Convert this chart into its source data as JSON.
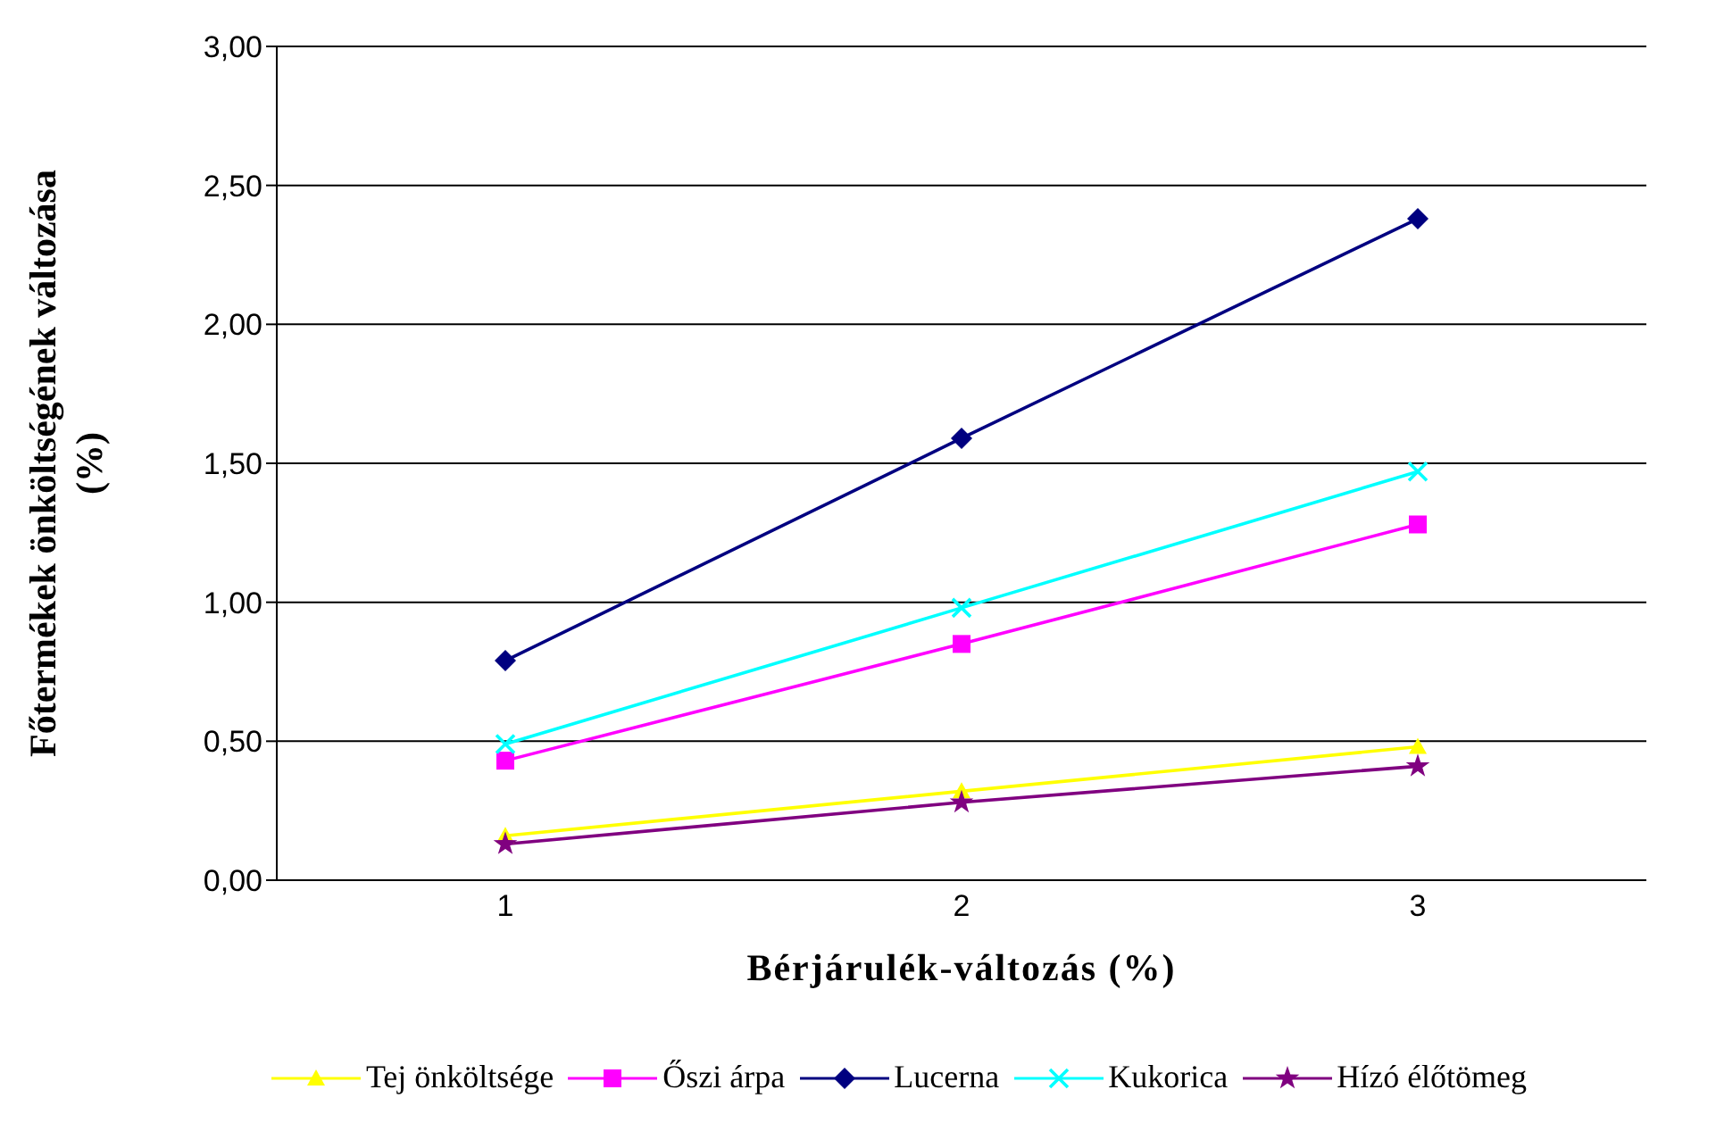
{
  "chart_data": {
    "type": "line",
    "xlabel": "Bérjárulék-változás (%)",
    "ylabel": "Főtermékek önköltségének változása (%)",
    "categories": [
      "1",
      "2",
      "3"
    ],
    "ylim": [
      0,
      3
    ],
    "yticks": [
      {
        "value": 0,
        "label": "0,00"
      },
      {
        "value": 0.5,
        "label": "0,50"
      },
      {
        "value": 1,
        "label": "1,00"
      },
      {
        "value": 1.5,
        "label": "1,50"
      },
      {
        "value": 2,
        "label": "2,00"
      },
      {
        "value": 2.5,
        "label": "2,50"
      },
      {
        "value": 3,
        "label": "3,00"
      }
    ],
    "grid": "y",
    "legend": "bottom",
    "line_style": "solid",
    "series": [
      {
        "name": "Tej önköltsége",
        "color": "#ffff00",
        "marker": "triangle",
        "values": [
          0.16,
          0.32,
          0.48
        ]
      },
      {
        "name": "Őszi árpa",
        "color": "#ff00ff",
        "marker": "square",
        "values": [
          0.43,
          0.85,
          1.28
        ]
      },
      {
        "name": "Lucerna",
        "color": "#000080",
        "marker": "diamond",
        "values": [
          0.79,
          1.59,
          2.38
        ]
      },
      {
        "name": "Kukorica",
        "color": "#00ffff",
        "marker": "cross",
        "values": [
          0.49,
          0.98,
          1.47
        ]
      },
      {
        "name": "Hízó élőtömeg",
        "color": "#800080",
        "marker": "star",
        "values": [
          0.13,
          0.28,
          0.41
        ]
      }
    ]
  }
}
